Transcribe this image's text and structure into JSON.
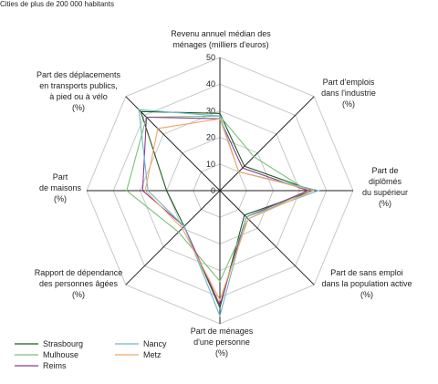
{
  "page_title": "Cities de plus de 200 000 habitants",
  "chart_data": {
    "type": "radar",
    "title": "",
    "axes": [
      "Revenu annuel médian des ménages (milliers d'euros)",
      "Part d'emplois dans l'industrie (%)",
      "Part de diplômés du supérieur (%)",
      "Part de sans emploi dans la population active (%)",
      "Part de ménages d'une personne (%)",
      "Rapport de dépendance des personnes âgées (%)",
      "Part de maisons (%)",
      "Part des déplacements en transports publics, à pied ou à vélo (%)"
    ],
    "range": [
      0,
      50
    ],
    "ticks": [
      0,
      10,
      20,
      30,
      40,
      50
    ],
    "grid": true,
    "legend": "bottom-left",
    "series": [
      {
        "name": "Strasbourg",
        "color": "#1e5b1e",
        "values": [
          29,
          13,
          35,
          13,
          44,
          19,
          20,
          42
        ]
      },
      {
        "name": "Mulhouse",
        "color": "#7bbf7b",
        "values": [
          28,
          18,
          33,
          15,
          34,
          22,
          35,
          39
        ]
      },
      {
        "name": "Reims",
        "color": "#8e3a8e",
        "values": [
          27,
          12,
          33,
          14,
          43,
          19,
          29,
          39
        ]
      },
      {
        "name": "Nancy",
        "color": "#6fb6c8",
        "values": [
          28,
          10,
          37,
          14,
          47,
          19,
          27,
          43
        ]
      },
      {
        "name": "Metz",
        "color": "#f0a868",
        "values": [
          27,
          10,
          35,
          15,
          41,
          20,
          28,
          33
        ]
      }
    ]
  }
}
